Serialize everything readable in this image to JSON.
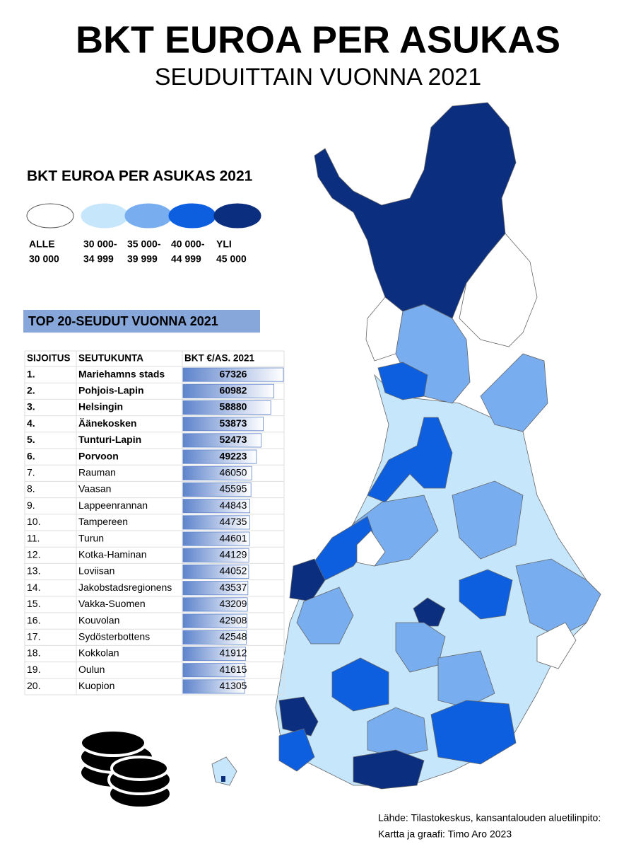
{
  "header": {
    "title": "BKT EUROA PER ASUKAS",
    "subtitle": "SEUDUITTAIN VUONNA 2021"
  },
  "legend": {
    "title": "BKT EUROA PER ASUKAS 2021",
    "items": [
      {
        "lines": [
          "ALLE",
          "30 000"
        ],
        "color": "#ffffff"
      },
      {
        "lines": [
          "30 000-",
          "34 999"
        ],
        "color": "#c5e6fb"
      },
      {
        "lines": [
          "35 000-",
          "39 999"
        ],
        "color": "#78aef0"
      },
      {
        "lines": [
          "40 000-",
          "44 999"
        ],
        "color": "#0d5fe0"
      },
      {
        "lines": [
          "YLI",
          "45 000"
        ],
        "color": "#0b2e7e"
      }
    ]
  },
  "table": {
    "title": "TOP 20-SEUDUT VUONNA 2021",
    "columns": [
      "SIJOITUS",
      "SEUTUKUNTA",
      "BKT €/AS. 2021"
    ],
    "rows": [
      [
        "1.",
        "Mariehamns stads",
        67326
      ],
      [
        "2.",
        "Pohjois-Lapin",
        60982
      ],
      [
        "3.",
        "Helsingin",
        58880
      ],
      [
        "4.",
        "Äänekosken",
        53873
      ],
      [
        "5.",
        "Tunturi-Lapin",
        52473
      ],
      [
        "6.",
        "Porvoon",
        49223
      ],
      [
        "7.",
        "Rauman",
        46050
      ],
      [
        "8.",
        "Vaasan",
        45595
      ],
      [
        "9.",
        "Lappeenrannan",
        44843
      ],
      [
        "10.",
        "Tampereen",
        44735
      ],
      [
        "11.",
        "Turun",
        44601
      ],
      [
        "12.",
        "Kotka-Haminan",
        44129
      ],
      [
        "13.",
        "Loviisan",
        44052
      ],
      [
        "14.",
        "Jakobstadsregionens",
        43537
      ],
      [
        "15.",
        "Vakka-Suomen",
        43209
      ],
      [
        "16.",
        "Kouvolan",
        42908
      ],
      [
        "17.",
        "Sydösterbottens",
        42548
      ],
      [
        "18.",
        "Kokkolan",
        41912
      ],
      [
        "19.",
        "Oulun",
        41615
      ],
      [
        "20.",
        "Kuopion",
        41305
      ]
    ]
  },
  "source": [
    "Lähde: Tilastokeskus, kansantalouden aluetilinpito:",
    "Kartta ja graafi: Timo Aro 2023"
  ]
}
